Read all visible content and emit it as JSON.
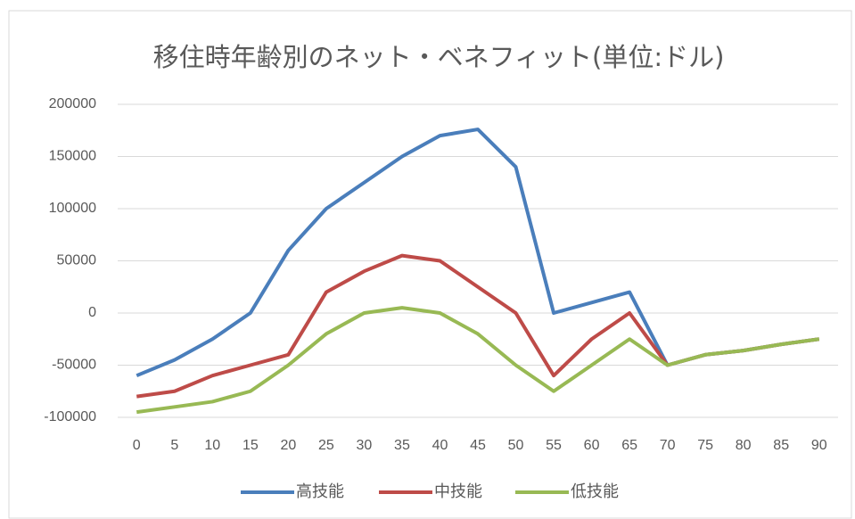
{
  "chart_data": {
    "type": "line",
    "title": "移住時年齢別のネット・ベネフィット(単位:ドル)",
    "categories": [
      0,
      5,
      10,
      15,
      20,
      25,
      30,
      35,
      40,
      45,
      50,
      55,
      60,
      65,
      70,
      75,
      80,
      85,
      90
    ],
    "series": [
      {
        "name": "高技能",
        "color": "#4a7ebb",
        "values": [
          -60000,
          -45000,
          -25000,
          0,
          60000,
          100000,
          125000,
          150000,
          170000,
          176000,
          140000,
          0,
          10000,
          20000,
          -50000,
          -40000,
          -36000,
          -30000,
          -25000
        ]
      },
      {
        "name": "中技能",
        "color": "#be4b48",
        "values": [
          -80000,
          -75000,
          -60000,
          -50000,
          -40000,
          20000,
          40000,
          55000,
          50000,
          25000,
          0,
          -60000,
          -25000,
          0,
          -50000,
          -40000,
          -36000,
          -30000,
          -25000
        ]
      },
      {
        "name": "低技能",
        "color": "#98b954",
        "values": [
          -95000,
          -90000,
          -85000,
          -75000,
          -50000,
          -20000,
          0,
          5000,
          0,
          -20000,
          -50000,
          -75000,
          -50000,
          -25000,
          -50000,
          -40000,
          -36000,
          -30000,
          -25000
        ]
      }
    ],
    "ylim": [
      -100000,
      200000
    ],
    "yticks": [
      -100000,
      -50000,
      0,
      50000,
      100000,
      150000,
      200000
    ],
    "grid": true,
    "legend": "bottom"
  }
}
